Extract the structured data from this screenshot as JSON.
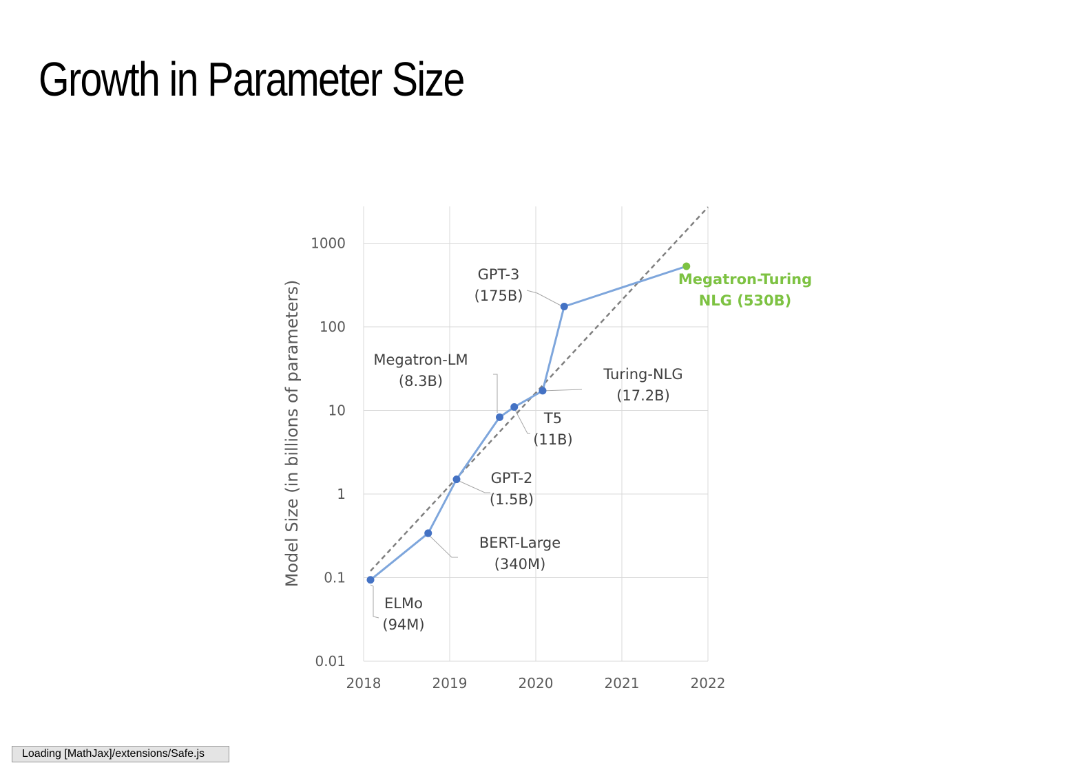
{
  "slide": {
    "title": "Growth in Parameter Size"
  },
  "status": {
    "text": "Loading [MathJax]/extensions/Safe.js"
  },
  "colors": {
    "series": "#7ea6dc",
    "point": "#4472c4",
    "highlight": "#7dc242",
    "trend": "#7f7f7f",
    "grid": "#d9d9d9",
    "tick_text": "#595959",
    "label_text": "#404040"
  },
  "chart_data": {
    "type": "line",
    "title": "",
    "xlabel": "",
    "ylabel": "Model Size (in billions of parameters)",
    "xlim": [
      2018,
      2022
    ],
    "ylim": [
      0.01,
      1000
    ],
    "yscale": "log",
    "x_ticks": [
      "2018",
      "2019",
      "2020",
      "2021",
      "2022"
    ],
    "y_ticks": [
      "0.01",
      "0.1",
      "1",
      "10",
      "100",
      "1000"
    ],
    "grid": true,
    "points": [
      {
        "label1": "ELMo",
        "label2": "(94M)",
        "x": 2018.08,
        "y": 0.094
      },
      {
        "label1": "BERT-Large",
        "label2": "(340M)",
        "x": 2018.75,
        "y": 0.34
      },
      {
        "label1": "GPT-2",
        "label2": "(1.5B)",
        "x": 2019.08,
        "y": 1.5
      },
      {
        "label1": "Megatron-LM",
        "label2": "(8.3B)",
        "x": 2019.58,
        "y": 8.3
      },
      {
        "label1": "T5",
        "label2": "(11B)",
        "x": 2019.75,
        "y": 11
      },
      {
        "label1": "Turing-NLG",
        "label2": "(17.2B)",
        "x": 2020.08,
        "y": 17.2
      },
      {
        "label1": "GPT-3",
        "label2": "(175B)",
        "x": 2020.33,
        "y": 175
      },
      {
        "label1": "Megatron-Turing",
        "label2": "NLG (530B)",
        "x": 2021.75,
        "y": 530,
        "highlight": true
      }
    ],
    "trendline": {
      "style": "dashed",
      "from": [
        2018.08,
        0.12
      ],
      "to": [
        2022,
        2700
      ]
    }
  }
}
